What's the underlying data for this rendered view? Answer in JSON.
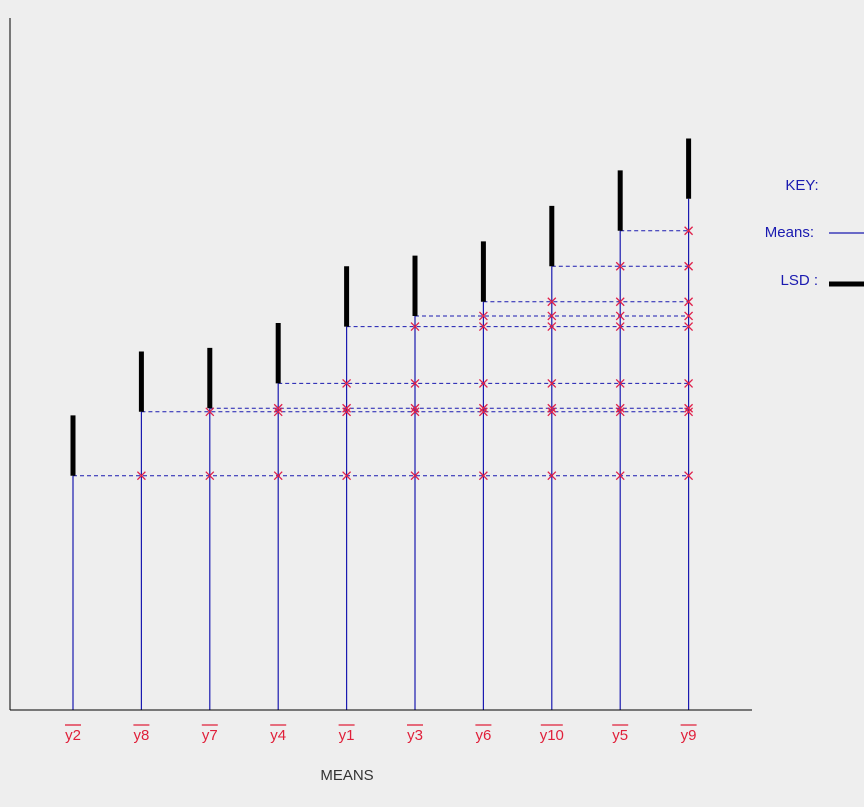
{
  "chart_data": {
    "type": "bar",
    "title": "",
    "xlabel": "MEANS",
    "ylabel": "",
    "ylim": [
      0,
      100
    ],
    "grid": false,
    "legend_placement": "right",
    "categories": [
      "y2",
      "y8",
      "y7",
      "y4",
      "y1",
      "y3",
      "y6",
      "y10",
      "y5",
      "y9"
    ],
    "series": [
      {
        "values": [
          33,
          42,
          42.5,
          46,
          54,
          55.5,
          57.5,
          62.5,
          67.5,
          72
        ]
      }
    ],
    "lsd": 8.5,
    "key": {
      "title": "KEY:",
      "means_label": "Means:",
      "lsd_label": "LSD :"
    },
    "colors": {
      "means_line": "#1a1ab0",
      "lsd_bar": "#000000",
      "marker": "#e0204a",
      "tick_label": "#e0203a",
      "key_text": "#1a1ab0",
      "axis": "#000000",
      "axis_label": "#333333"
    }
  }
}
